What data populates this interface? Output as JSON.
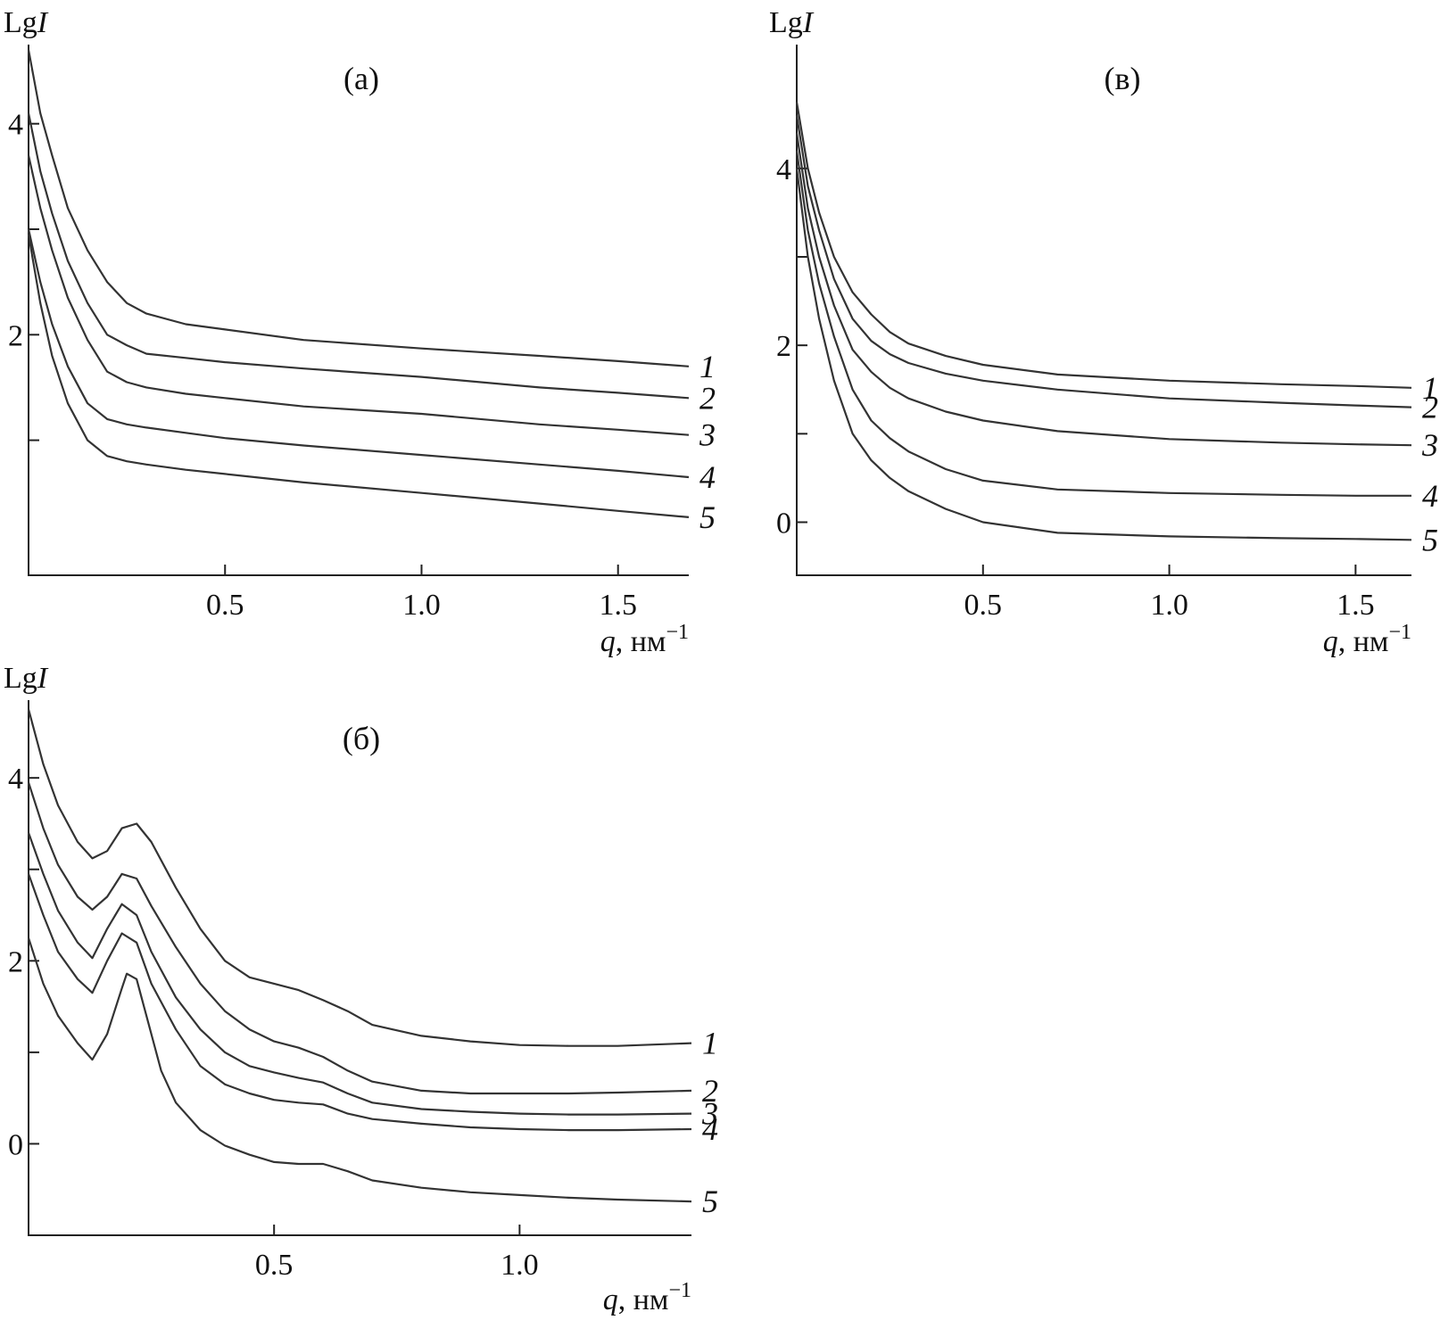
{
  "chart_data": [
    {
      "type": "line",
      "panel_label": "(а)",
      "ylabel": "Lg",
      "ylabel_italic": "I",
      "xlabel_var": "q",
      "xlabel_unit": ", нм",
      "xlabel_sup": "−1",
      "xlim": [
        0.0,
        1.68
      ],
      "ylim": [
        -0.28,
        4.75
      ],
      "xticks": [
        0.5,
        1.0,
        1.5
      ],
      "xtick_labels": [
        "0.5",
        "1.0",
        "1.5"
      ],
      "yticks": [
        1,
        2,
        3,
        4
      ],
      "ytick_labels": [
        "",
        "2",
        "",
        "4"
      ],
      "grid": false,
      "series": [
        {
          "name": "1",
          "x": [
            0.0,
            0.03,
            0.06,
            0.1,
            0.15,
            0.2,
            0.25,
            0.3,
            0.4,
            0.5,
            0.7,
            1.0,
            1.3,
            1.5,
            1.68
          ],
          "y": [
            4.7,
            4.1,
            3.7,
            3.2,
            2.8,
            2.5,
            2.3,
            2.2,
            2.1,
            2.05,
            1.95,
            1.87,
            1.8,
            1.75,
            1.7
          ]
        },
        {
          "name": "2",
          "x": [
            0.0,
            0.03,
            0.06,
            0.1,
            0.15,
            0.2,
            0.25,
            0.3,
            0.4,
            0.5,
            0.7,
            1.0,
            1.3,
            1.5,
            1.68
          ],
          "y": [
            4.1,
            3.55,
            3.15,
            2.7,
            2.3,
            2.0,
            1.9,
            1.82,
            1.78,
            1.74,
            1.68,
            1.6,
            1.5,
            1.45,
            1.4
          ]
        },
        {
          "name": "3",
          "x": [
            0.0,
            0.03,
            0.06,
            0.1,
            0.15,
            0.2,
            0.25,
            0.3,
            0.4,
            0.5,
            0.7,
            1.0,
            1.3,
            1.5,
            1.68
          ],
          "y": [
            3.7,
            3.2,
            2.8,
            2.35,
            1.95,
            1.65,
            1.55,
            1.5,
            1.44,
            1.4,
            1.32,
            1.25,
            1.15,
            1.1,
            1.05
          ]
        },
        {
          "name": "4",
          "x": [
            0.0,
            0.03,
            0.06,
            0.1,
            0.15,
            0.2,
            0.25,
            0.3,
            0.4,
            0.5,
            0.7,
            1.0,
            1.3,
            1.5,
            1.68
          ],
          "y": [
            3.0,
            2.5,
            2.1,
            1.7,
            1.35,
            1.2,
            1.15,
            1.12,
            1.07,
            1.02,
            0.95,
            0.86,
            0.77,
            0.71,
            0.65
          ]
        },
        {
          "name": "5",
          "x": [
            0.0,
            0.03,
            0.06,
            0.1,
            0.15,
            0.2,
            0.25,
            0.3,
            0.4,
            0.5,
            0.7,
            1.0,
            1.3,
            1.5,
            1.68
          ],
          "y": [
            2.95,
            2.3,
            1.8,
            1.35,
            1.0,
            0.85,
            0.8,
            0.77,
            0.72,
            0.68,
            0.6,
            0.5,
            0.4,
            0.33,
            0.27
          ]
        }
      ]
    },
    {
      "type": "line",
      "panel_label": "(в)",
      "ylabel": "Lg",
      "ylabel_italic": "I",
      "xlabel_var": "q",
      "xlabel_unit": ", нм",
      "xlabel_sup": "−1",
      "xlim": [
        0.0,
        1.65
      ],
      "ylim": [
        -0.6,
        5.4
      ],
      "xticks": [
        0.5,
        1.0,
        1.5
      ],
      "xtick_labels": [
        "0.5",
        "1.0",
        "1.5"
      ],
      "yticks": [
        0,
        1,
        2,
        3,
        4
      ],
      "ytick_labels": [
        "0",
        "",
        "2",
        "",
        "4"
      ],
      "grid": false,
      "series": [
        {
          "name": "1",
          "x": [
            0.0,
            0.03,
            0.06,
            0.1,
            0.15,
            0.2,
            0.25,
            0.3,
            0.4,
            0.5,
            0.7,
            1.0,
            1.3,
            1.5,
            1.65
          ],
          "y": [
            4.75,
            4.0,
            3.5,
            3.0,
            2.6,
            2.35,
            2.15,
            2.02,
            1.88,
            1.78,
            1.67,
            1.6,
            1.56,
            1.54,
            1.52
          ]
        },
        {
          "name": "2",
          "x": [
            0.0,
            0.03,
            0.06,
            0.1,
            0.15,
            0.2,
            0.25,
            0.3,
            0.4,
            0.5,
            0.7,
            1.0,
            1.3,
            1.5,
            1.65
          ],
          "y": [
            4.6,
            3.8,
            3.3,
            2.75,
            2.3,
            2.05,
            1.9,
            1.8,
            1.68,
            1.6,
            1.5,
            1.4,
            1.35,
            1.32,
            1.3
          ]
        },
        {
          "name": "3",
          "x": [
            0.0,
            0.03,
            0.06,
            0.1,
            0.15,
            0.2,
            0.25,
            0.3,
            0.4,
            0.5,
            0.7,
            1.0,
            1.3,
            1.5,
            1.65
          ],
          "y": [
            4.4,
            3.55,
            3.0,
            2.45,
            1.95,
            1.7,
            1.52,
            1.4,
            1.25,
            1.15,
            1.03,
            0.94,
            0.9,
            0.88,
            0.87
          ]
        },
        {
          "name": "4",
          "x": [
            0.0,
            0.03,
            0.06,
            0.1,
            0.15,
            0.2,
            0.25,
            0.3,
            0.4,
            0.5,
            0.7,
            1.0,
            1.3,
            1.5,
            1.65
          ],
          "y": [
            4.2,
            3.3,
            2.7,
            2.1,
            1.5,
            1.15,
            0.95,
            0.8,
            0.6,
            0.47,
            0.37,
            0.33,
            0.31,
            0.3,
            0.3
          ]
        },
        {
          "name": "5",
          "x": [
            0.0,
            0.03,
            0.06,
            0.1,
            0.15,
            0.2,
            0.25,
            0.3,
            0.4,
            0.5,
            0.7,
            1.0,
            1.3,
            1.5,
            1.65
          ],
          "y": [
            4.0,
            3.0,
            2.3,
            1.6,
            1.0,
            0.7,
            0.5,
            0.35,
            0.15,
            0.0,
            -0.12,
            -0.16,
            -0.18,
            -0.19,
            -0.2
          ]
        }
      ]
    },
    {
      "type": "line",
      "panel_label": "(б)",
      "ylabel": "Lg",
      "ylabel_italic": "I",
      "xlabel_var": "q",
      "xlabel_unit": ", нм",
      "xlabel_sup": "−1",
      "xlim": [
        0.0,
        1.35
      ],
      "ylim": [
        -1.0,
        4.85
      ],
      "xticks": [
        0.5,
        1.0
      ],
      "xtick_labels": [
        "0.5",
        "1.0"
      ],
      "yticks": [
        0,
        1,
        2,
        3,
        4
      ],
      "ytick_labels": [
        "0",
        "",
        "2",
        "",
        "4"
      ],
      "grid": false,
      "series": [
        {
          "name": "1",
          "x": [
            0.0,
            0.03,
            0.06,
            0.1,
            0.13,
            0.16,
            0.19,
            0.22,
            0.25,
            0.3,
            0.35,
            0.4,
            0.45,
            0.5,
            0.55,
            0.6,
            0.65,
            0.7,
            0.8,
            0.9,
            1.0,
            1.1,
            1.2,
            1.35
          ],
          "y": [
            4.75,
            4.15,
            3.7,
            3.3,
            3.12,
            3.2,
            3.45,
            3.5,
            3.3,
            2.8,
            2.35,
            2.0,
            1.82,
            1.75,
            1.68,
            1.57,
            1.45,
            1.3,
            1.18,
            1.12,
            1.08,
            1.07,
            1.07,
            1.1
          ]
        },
        {
          "name": "2",
          "x": [
            0.0,
            0.03,
            0.06,
            0.1,
            0.13,
            0.16,
            0.19,
            0.22,
            0.25,
            0.3,
            0.35,
            0.4,
            0.45,
            0.5,
            0.55,
            0.6,
            0.65,
            0.7,
            0.8,
            0.9,
            1.0,
            1.1,
            1.2,
            1.35
          ],
          "y": [
            3.95,
            3.45,
            3.05,
            2.7,
            2.56,
            2.7,
            2.95,
            2.9,
            2.6,
            2.15,
            1.75,
            1.45,
            1.25,
            1.12,
            1.05,
            0.95,
            0.8,
            0.68,
            0.58,
            0.55,
            0.55,
            0.55,
            0.56,
            0.58
          ]
        },
        {
          "name": "3",
          "x": [
            0.0,
            0.03,
            0.06,
            0.1,
            0.13,
            0.16,
            0.19,
            0.22,
            0.25,
            0.3,
            0.35,
            0.4,
            0.45,
            0.5,
            0.55,
            0.6,
            0.65,
            0.7,
            0.8,
            0.9,
            1.0,
            1.1,
            1.2,
            1.35
          ],
          "y": [
            3.4,
            2.95,
            2.55,
            2.2,
            2.03,
            2.35,
            2.62,
            2.5,
            2.1,
            1.6,
            1.25,
            1.0,
            0.85,
            0.78,
            0.72,
            0.67,
            0.55,
            0.45,
            0.38,
            0.35,
            0.33,
            0.32,
            0.32,
            0.33
          ]
        },
        {
          "name": "4",
          "x": [
            0.0,
            0.03,
            0.06,
            0.1,
            0.13,
            0.16,
            0.19,
            0.22,
            0.25,
            0.3,
            0.35,
            0.4,
            0.45,
            0.5,
            0.55,
            0.6,
            0.65,
            0.7,
            0.8,
            0.9,
            1.0,
            1.1,
            1.2,
            1.35
          ],
          "y": [
            2.95,
            2.5,
            2.1,
            1.8,
            1.65,
            2.0,
            2.3,
            2.2,
            1.75,
            1.25,
            0.85,
            0.65,
            0.55,
            0.48,
            0.45,
            0.43,
            0.33,
            0.27,
            0.22,
            0.18,
            0.16,
            0.15,
            0.15,
            0.16
          ]
        },
        {
          "name": "5",
          "x": [
            0.0,
            0.03,
            0.06,
            0.1,
            0.13,
            0.16,
            0.19,
            0.2,
            0.22,
            0.24,
            0.27,
            0.3,
            0.35,
            0.4,
            0.45,
            0.5,
            0.55,
            0.6,
            0.65,
            0.7,
            0.8,
            0.9,
            1.0,
            1.1,
            1.2,
            1.35
          ],
          "y": [
            2.25,
            1.75,
            1.4,
            1.1,
            0.92,
            1.2,
            1.7,
            1.86,
            1.8,
            1.4,
            0.8,
            0.45,
            0.15,
            -0.02,
            -0.12,
            -0.2,
            -0.22,
            -0.22,
            -0.3,
            -0.4,
            -0.48,
            -0.53,
            -0.56,
            -0.59,
            -0.61,
            -0.63
          ]
        }
      ]
    }
  ]
}
